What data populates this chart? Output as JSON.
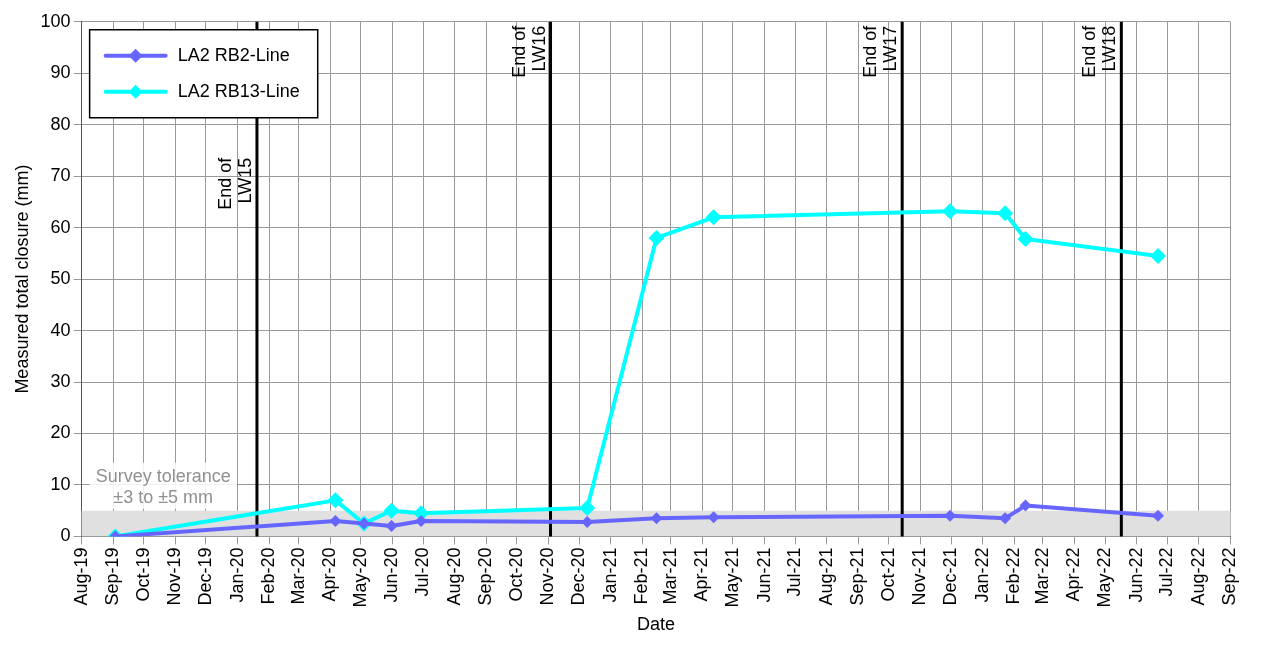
{
  "chart_data": {
    "type": "line",
    "xlabel": "Date",
    "ylabel": "Measured total closure (mm)",
    "xlim": [
      "2019-08-01",
      "2022-09-01"
    ],
    "xticks": [
      {
        "value": "2019-08-01",
        "label": "Aug-19"
      },
      {
        "value": "2019-09-01",
        "label": "Sep-19"
      },
      {
        "value": "2019-10-01",
        "label": "Oct-19"
      },
      {
        "value": "2019-11-01",
        "label": "Nov-19"
      },
      {
        "value": "2019-12-01",
        "label": "Dec-19"
      },
      {
        "value": "2020-01-01",
        "label": "Jan-20"
      },
      {
        "value": "2020-02-01",
        "label": "Feb-20"
      },
      {
        "value": "2020-03-01",
        "label": "Mar-20"
      },
      {
        "value": "2020-04-01",
        "label": "Apr-20"
      },
      {
        "value": "2020-05-01",
        "label": "May-20"
      },
      {
        "value": "2020-06-01",
        "label": "Jun-20"
      },
      {
        "value": "2020-07-01",
        "label": "Jul-20"
      },
      {
        "value": "2020-08-01",
        "label": "Aug-20"
      },
      {
        "value": "2020-09-01",
        "label": "Sep-20"
      },
      {
        "value": "2020-10-01",
        "label": "Oct-20"
      },
      {
        "value": "2020-11-01",
        "label": "Nov-20"
      },
      {
        "value": "2020-12-01",
        "label": "Dec-20"
      },
      {
        "value": "2021-01-01",
        "label": "Jan-21"
      },
      {
        "value": "2021-02-01",
        "label": "Feb-21"
      },
      {
        "value": "2021-03-01",
        "label": "Mar-21"
      },
      {
        "value": "2021-04-01",
        "label": "Apr-21"
      },
      {
        "value": "2021-05-01",
        "label": "May-21"
      },
      {
        "value": "2021-06-01",
        "label": "Jun-21"
      },
      {
        "value": "2021-07-01",
        "label": "Jul-21"
      },
      {
        "value": "2021-08-01",
        "label": "Aug-21"
      },
      {
        "value": "2021-09-01",
        "label": "Sep-21"
      },
      {
        "value": "2021-10-01",
        "label": "Oct-21"
      },
      {
        "value": "2021-11-01",
        "label": "Nov-21"
      },
      {
        "value": "2021-12-01",
        "label": "Dec-21"
      },
      {
        "value": "2022-01-01",
        "label": "Jan-22"
      },
      {
        "value": "2022-02-01",
        "label": "Feb-22"
      },
      {
        "value": "2022-03-01",
        "label": "Mar-22"
      },
      {
        "value": "2022-04-01",
        "label": "Apr-22"
      },
      {
        "value": "2022-05-01",
        "label": "May-22"
      },
      {
        "value": "2022-06-01",
        "label": "Jun-22"
      },
      {
        "value": "2022-07-01",
        "label": "Jul-22"
      },
      {
        "value": "2022-08-01",
        "label": "Aug-22"
      },
      {
        "value": "2022-09-01",
        "label": "Sep-22"
      }
    ],
    "ylim": [
      0,
      100
    ],
    "yticks": [
      0,
      10,
      20,
      30,
      40,
      50,
      60,
      70,
      80,
      90,
      100
    ],
    "x": [
      "2019-09-03",
      "2020-04-06",
      "2020-05-04",
      "2020-05-31",
      "2020-06-29",
      "2020-12-09",
      "2021-02-15",
      "2021-04-12",
      "2021-11-30",
      "2022-01-23",
      "2022-02-12",
      "2022-06-22"
    ],
    "series": [
      {
        "name": "LA2 RB2-Line",
        "color": "#6666ff",
        "values": [
          0,
          3,
          2.5,
          2,
          3,
          2.8,
          3.5,
          3.7,
          4,
          3.5,
          6,
          4
        ]
      },
      {
        "name": "LA2 RB13-Line",
        "color": "#00ffff",
        "values": [
          0,
          7,
          2.5,
          5,
          4.5,
          5.5,
          58,
          62,
          63.2,
          62.8,
          57.8,
          54.5
        ]
      }
    ],
    "ref_lines": [
      {
        "axis": "x",
        "value": "2020-01-20",
        "label": "End of LW15",
        "color": "#000000"
      },
      {
        "axis": "x",
        "value": "2020-11-03",
        "label": "End of LW16",
        "color": "#000000"
      },
      {
        "axis": "x",
        "value": "2021-10-14",
        "label": "End of LW17",
        "color": "#000000"
      },
      {
        "axis": "x",
        "value": "2022-05-17",
        "label": "End of LW18",
        "color": "#000000"
      }
    ],
    "bands": [
      {
        "axis": "y",
        "from": 0,
        "to": 5,
        "label": "Survey tolerance\n±3 to ±5 mm",
        "color": "#e0e0e0"
      }
    ],
    "grid": true,
    "legend": "top left",
    "marker": "diamond",
    "line_style": "solid"
  }
}
